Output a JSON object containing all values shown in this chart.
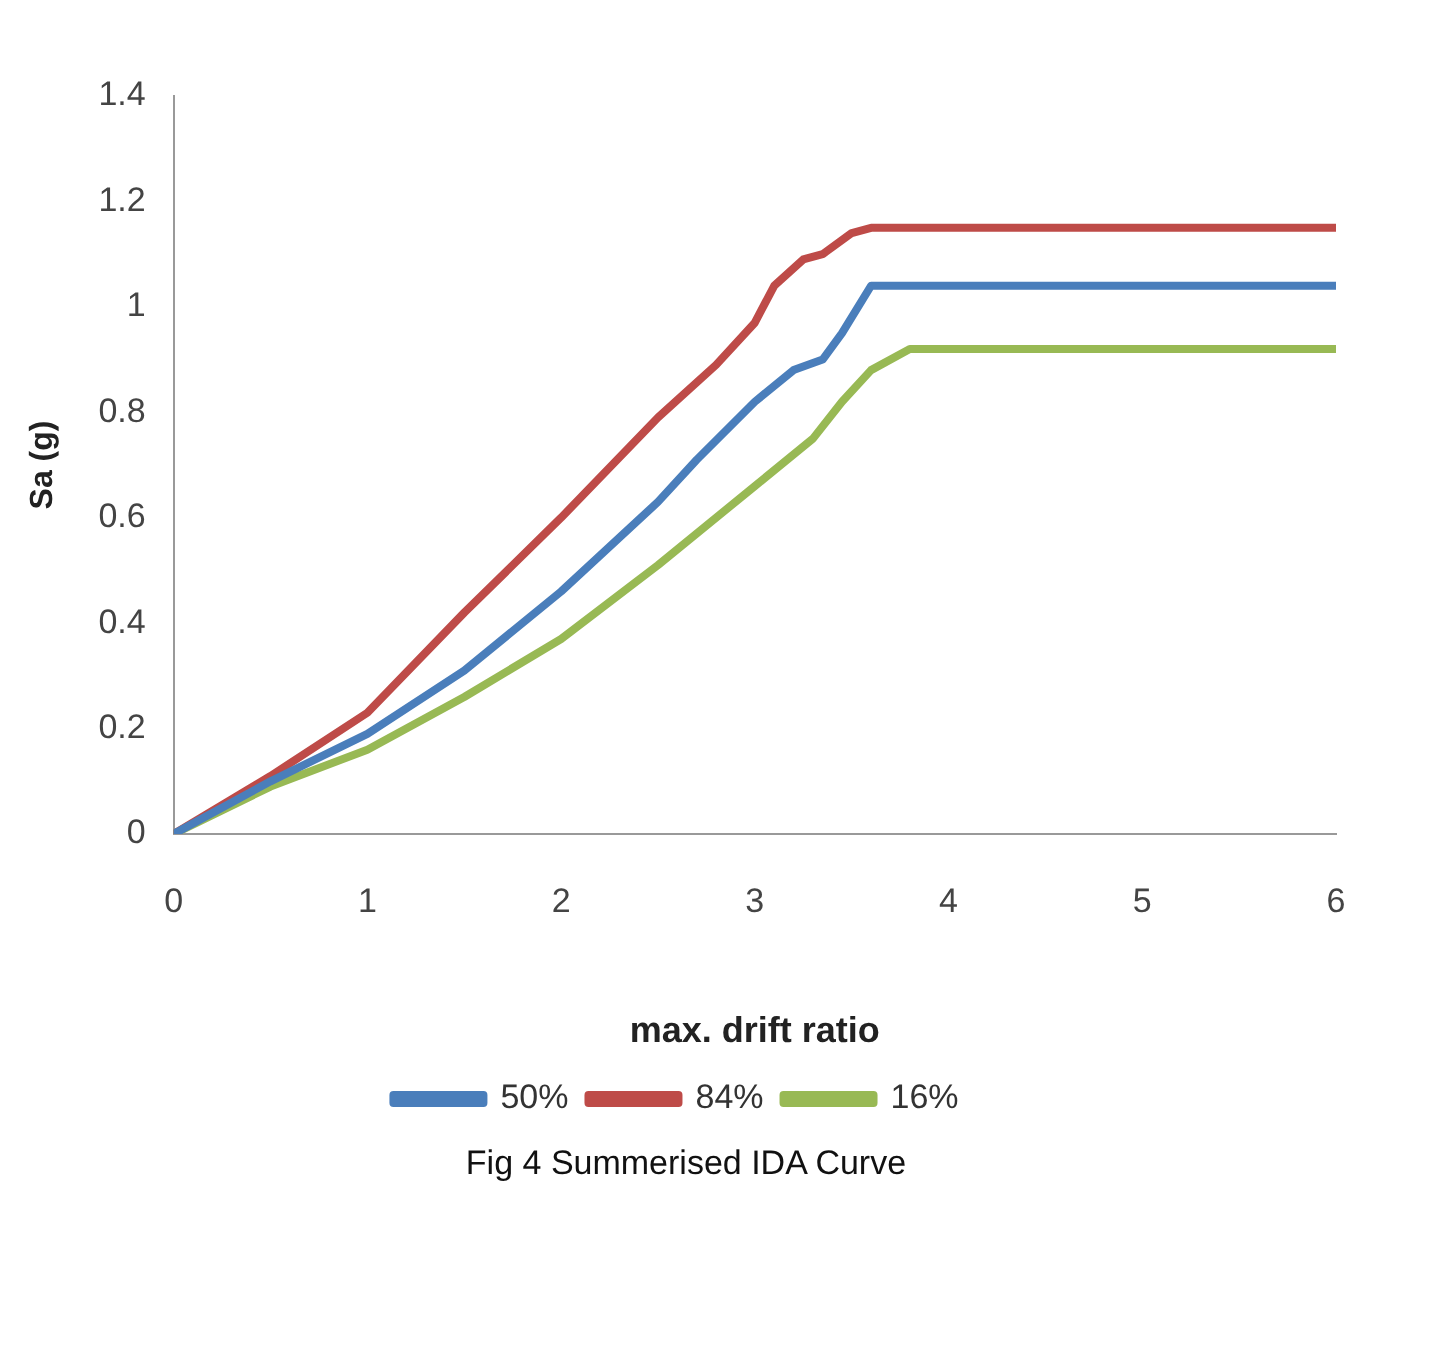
{
  "chart_data": {
    "type": "line",
    "xlabel": "max. drift ratio",
    "ylabel": "Sa (g)",
    "xlim": [
      0,
      6
    ],
    "xticks": [
      0,
      1,
      2,
      3,
      4,
      5,
      6
    ],
    "ylim": [
      0,
      1.4
    ],
    "yticks": [
      0,
      0.2,
      0.4,
      0.6,
      0.8,
      1,
      1.2,
      1.4
    ],
    "grid": false,
    "legend": "bottom",
    "marker": "none",
    "line_style": "solid",
    "series": [
      {
        "name": "50%",
        "color": "#4a7ebb",
        "x": [
          0,
          0.5,
          1,
          1.5,
          2,
          2.5,
          2.7,
          3,
          3.2,
          3.35,
          3.45,
          3.6,
          6
        ],
        "values": [
          0,
          0.1,
          0.19,
          0.31,
          0.46,
          0.63,
          0.71,
          0.82,
          0.88,
          0.9,
          0.95,
          1.04,
          1.04
        ]
      },
      {
        "name": "84%",
        "color": "#be4b48",
        "x": [
          0,
          0.5,
          1,
          1.5,
          2,
          2.5,
          2.8,
          3,
          3.1,
          3.25,
          3.35,
          3.5,
          3.6,
          6
        ],
        "values": [
          0,
          0.11,
          0.23,
          0.42,
          0.6,
          0.79,
          0.89,
          0.97,
          1.04,
          1.09,
          1.1,
          1.14,
          1.15,
          1.15
        ]
      },
      {
        "name": "16%",
        "color": "#98b954",
        "x": [
          0,
          0.5,
          1,
          1.5,
          2,
          2.5,
          3,
          3.3,
          3.45,
          3.6,
          3.8,
          6
        ],
        "values": [
          0,
          0.09,
          0.16,
          0.26,
          0.37,
          0.51,
          0.66,
          0.75,
          0.82,
          0.88,
          0.92,
          0.92
        ]
      }
    ],
    "annotations": [
      "Fig 4 Summerised IDA Curve"
    ]
  }
}
